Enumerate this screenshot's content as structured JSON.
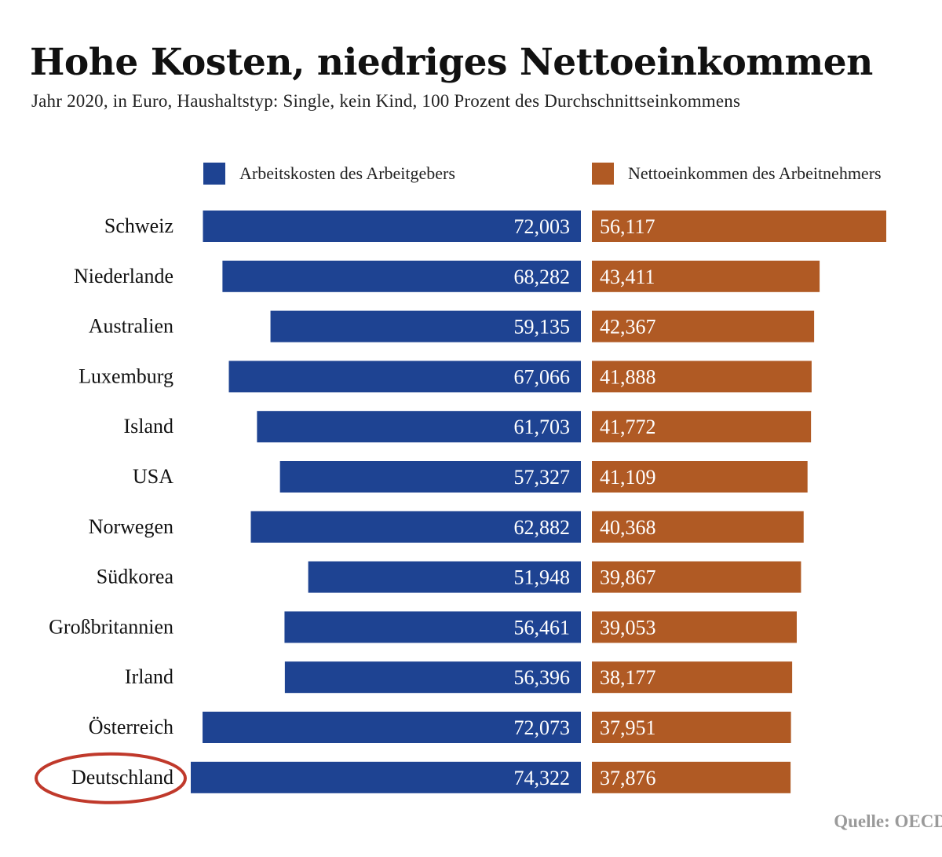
{
  "chart_data": {
    "type": "bar",
    "title": "Hohe Kosten, niedriges Nettoeinkommen",
    "subtitle": "Jahr 2020, in Euro, Haushaltstyp: Single, kein Kind, 100 Prozent des Durchschnittseinkommens",
    "categories": [
      "Schweiz",
      "Niederlande",
      "Australien",
      "Luxemburg",
      "Island",
      "USA",
      "Norwegen",
      "Südkorea",
      "Großbritannien",
      "Irland",
      "Österreich",
      "Deutschland"
    ],
    "series": [
      {
        "name": "Arbeitskosten des Arbeitgebers",
        "values": [
          72003,
          68282,
          59135,
          67066,
          61703,
          57327,
          62882,
          51948,
          56461,
          56396,
          72073,
          74322
        ],
        "labels": [
          "72,003",
          "68,282",
          "59,135",
          "67,066",
          "61,703",
          "57,327",
          "62,882",
          "51,948",
          "56,461",
          "56,396",
          "72,073",
          "74,322"
        ],
        "color": "#1e4392",
        "direction": "left"
      },
      {
        "name": "Nettoeinkommen des Arbeitnehmers",
        "values": [
          56117,
          43411,
          42367,
          41888,
          41772,
          41109,
          40368,
          39867,
          39053,
          38177,
          37951,
          37876
        ],
        "labels": [
          "56,117",
          "43,411",
          "42,367",
          "41,888",
          "41,772",
          "41,109",
          "40,368",
          "39,867",
          "39,053",
          "38,177",
          "37,951",
          "37,876"
        ],
        "color": "#b05a24",
        "direction": "right"
      }
    ],
    "highlight_category": "Deutschland",
    "highlight_color": "#c0392b",
    "legend_position": "top",
    "grid": false
  },
  "source": "Quelle: OECD"
}
